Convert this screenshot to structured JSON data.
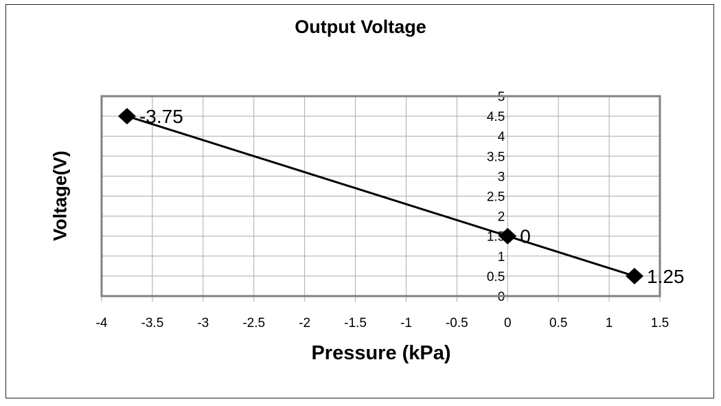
{
  "chart_data": {
    "type": "scatter",
    "title": "Output Voltage",
    "xlabel": "Pressure (kPa)",
    "ylabel": "Voltage(V)",
    "xlim": [
      -4,
      1.5
    ],
    "ylim": [
      0,
      5
    ],
    "x_ticks": [
      "-4",
      "-3.5",
      "-3",
      "-2.5",
      "-2",
      "-1.5",
      "-1",
      "-0.5",
      "0",
      "0.5",
      "1",
      "1.5"
    ],
    "y_ticks": [
      "0",
      "0.5",
      "1",
      "1.5",
      "2",
      "2.5",
      "3",
      "3.5",
      "4",
      "4.5",
      "5"
    ],
    "grid": true,
    "series": [
      {
        "name": "Output Voltage",
        "x": [
          -3.75,
          0,
          1.25
        ],
        "y": [
          4.5,
          1.5,
          0.5
        ],
        "labels": [
          "-3.75",
          "0",
          "1.25"
        ],
        "marker": "diamond",
        "color": "#000000",
        "line": true
      }
    ]
  }
}
